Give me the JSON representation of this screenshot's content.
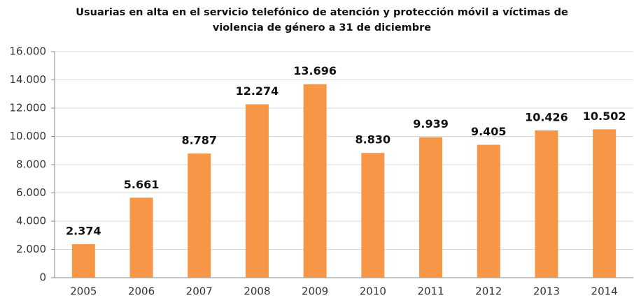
{
  "chart_data": {
    "type": "bar",
    "title": [
      "Usuarias en alta en el servicio telefónico de atención y protección móvil a víctimas de",
      "violencia de género a 31 de diciembre"
    ],
    "categories": [
      "2005",
      "2006",
      "2007",
      "2008",
      "2009",
      "2010",
      "2011",
      "2012",
      "2013",
      "2014"
    ],
    "values": [
      2374,
      5661,
      8787,
      12274,
      13696,
      8830,
      9939,
      9405,
      10426,
      10502
    ],
    "value_labels": [
      "2.374",
      "5.661",
      "8.787",
      "12.274",
      "13.696",
      "8.830",
      "9.939",
      "9.405",
      "10.426",
      "10.502"
    ],
    "color": "#f79646",
    "ylim": [
      0,
      16000
    ],
    "yticks": [
      0,
      {
        "value": 2000,
        "label": "2.000"
      },
      {
        "value": 4000,
        "label": "4.000"
      },
      {
        "value": 6000,
        "label": "6.000"
      },
      {
        "value": 8000,
        "label": "8.000"
      },
      {
        "value": 10000,
        "label": "10.000"
      },
      {
        "value": 12000,
        "label": "12.000"
      },
      {
        "value": 14000,
        "label": "14.000"
      },
      {
        "value": 16000,
        "label": "16.000"
      }
    ],
    "grid": true
  }
}
